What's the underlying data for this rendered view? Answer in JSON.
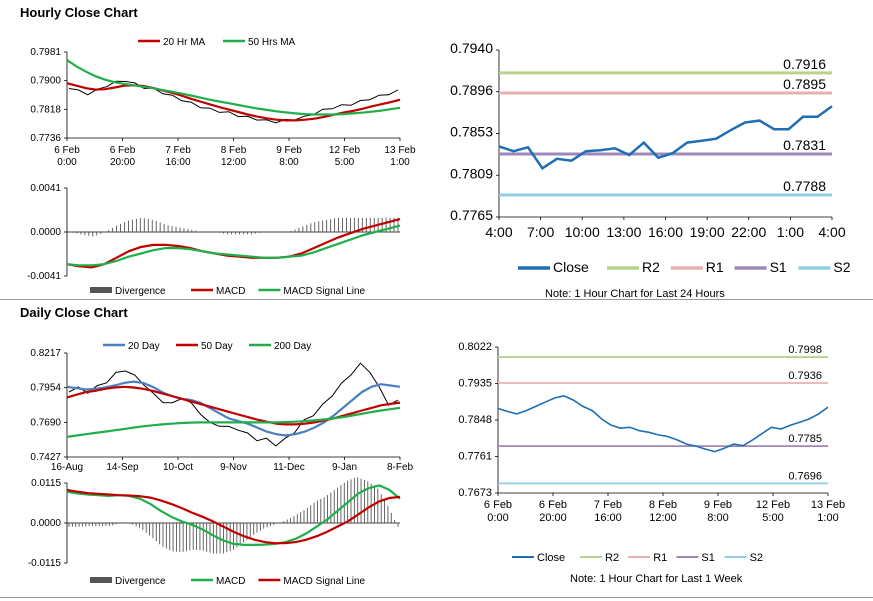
{
  "hourly": {
    "title": "Hourly Close Chart",
    "note": "Note: 1 Hour Chart for Last 24 Hours"
  },
  "daily": {
    "title": "Daily Close Chart",
    "note": "Note: 1 Hour Chart for Last 1 Week"
  },
  "chart_data": [
    {
      "id": "hourly_ma",
      "type": "line",
      "legend": [
        "20 Hr MA",
        "50 Hrs MA"
      ],
      "colors": {
        "price": "#000000",
        "ma20": "#c00000",
        "ma50": "#1fae4b"
      },
      "ylim": [
        0.7736,
        0.7981
      ],
      "yticks": [
        "0.7981",
        "0.7900",
        "0.7818",
        "0.7736"
      ],
      "xticks": [
        [
          "6 Feb",
          "0:00"
        ],
        [
          "6 Feb",
          "20:00"
        ],
        [
          "7 Feb",
          "16:00"
        ],
        [
          "8 Feb",
          "12:00"
        ],
        [
          "9 Feb",
          "8:00"
        ],
        [
          "12 Feb",
          "5:00"
        ],
        [
          "13 Feb",
          "1:00"
        ]
      ],
      "series": [
        {
          "name": "Close",
          "values": [
            0.788,
            0.787,
            0.7862,
            0.7872,
            0.7885,
            0.7895,
            0.79,
            0.789,
            0.788,
            0.7875,
            0.7865,
            0.7855,
            0.7845,
            0.7835,
            0.7825,
            0.7818,
            0.7812,
            0.7808,
            0.78,
            0.7795,
            0.779,
            0.7785,
            0.7782,
            0.7786,
            0.779,
            0.7795,
            0.7805,
            0.7815,
            0.7822,
            0.7828,
            0.7832,
            0.784,
            0.7848,
            0.7855,
            0.7862,
            0.787
          ]
        },
        {
          "name": "20 Hr MA",
          "values": [
            0.7892,
            0.7885,
            0.7878,
            0.7874,
            0.7875,
            0.788,
            0.7885,
            0.7886,
            0.7884,
            0.7879,
            0.7872,
            0.7865,
            0.7857,
            0.7848,
            0.784,
            0.7832,
            0.7824,
            0.7817,
            0.781,
            0.7803,
            0.7797,
            0.7792,
            0.7788,
            0.7786,
            0.7786,
            0.7788,
            0.7791,
            0.7796,
            0.7802,
            0.7808,
            0.7813,
            0.7819,
            0.7826,
            0.7832,
            0.7838,
            0.7845
          ]
        },
        {
          "name": "50 Hrs MA",
          "values": [
            0.7958,
            0.794,
            0.7925,
            0.7912,
            0.7902,
            0.7895,
            0.789,
            0.7886,
            0.7882,
            0.7878,
            0.7873,
            0.7868,
            0.7863,
            0.7857,
            0.7851,
            0.7845,
            0.784,
            0.7835,
            0.783,
            0.7825,
            0.782,
            0.7816,
            0.7812,
            0.7809,
            0.7806,
            0.7804,
            0.7803,
            0.7803,
            0.7803,
            0.7804,
            0.7806,
            0.7808,
            0.7811,
            0.7814,
            0.7818,
            0.7822
          ]
        }
      ]
    },
    {
      "id": "hourly_macd",
      "type": "line",
      "legend": [
        "Divergence",
        "MACD",
        "MACD Signal Line"
      ],
      "colors": {
        "div": "#555555",
        "macd": "#c00000",
        "signal": "#1fae4b"
      },
      "ylim": [
        -0.0041,
        0.0041
      ],
      "yticks": [
        "0.0041",
        "0.0000",
        "-0.0041"
      ],
      "series": [
        {
          "name": "MACD",
          "values": [
            -0.003,
            -0.0032,
            -0.0033,
            -0.003,
            -0.0024,
            -0.0018,
            -0.0014,
            -0.0012,
            -0.0012,
            -0.0013,
            -0.0015,
            -0.0018,
            -0.002,
            -0.0022,
            -0.0023,
            -0.0024,
            -0.0024,
            -0.0024,
            -0.0023,
            -0.002,
            -0.0015,
            -0.001,
            -0.0005,
            -0.0001,
            0.0003,
            0.0006,
            0.0009,
            0.0012
          ]
        },
        {
          "name": "MACD Signal Line",
          "values": [
            -0.003,
            -0.0031,
            -0.0031,
            -0.003,
            -0.0027,
            -0.0023,
            -0.002,
            -0.0017,
            -0.0015,
            -0.0015,
            -0.0016,
            -0.0018,
            -0.002,
            -0.0021,
            -0.0022,
            -0.0023,
            -0.0024,
            -0.0024,
            -0.0023,
            -0.0022,
            -0.0019,
            -0.0015,
            -0.0011,
            -0.0007,
            -0.0003,
            0.0,
            0.0003,
            0.0006
          ]
        }
      ]
    },
    {
      "id": "hourly_levels",
      "type": "line",
      "ylim": [
        0.7765,
        0.794
      ],
      "yticks": [
        "0.7940",
        "0.7896",
        "0.7853",
        "0.7809",
        "0.7765"
      ],
      "xticks": [
        "4:00",
        "7:00",
        "10:00",
        "13:00",
        "16:00",
        "19:00",
        "22:00",
        "1:00",
        "4:00"
      ],
      "legend": [
        "Close",
        "R2",
        "R1",
        "S1",
        "S2"
      ],
      "colors": {
        "close": "#1f6fb4",
        "r2": "#b9d38c",
        "r1": "#e8b0b0",
        "s1": "#9e88b8",
        "s2": "#8fcfe0"
      },
      "levels": {
        "R2": 0.7916,
        "R1": 0.7895,
        "S1": 0.7831,
        "S2": 0.7788
      },
      "level_labels": {
        "R2": "0.7916",
        "R1": "0.7895",
        "S1": "0.7831",
        "S2": "0.7788"
      },
      "close": [
        0.7839,
        0.7834,
        0.7838,
        0.7816,
        0.7826,
        0.7824,
        0.7834,
        0.7835,
        0.7837,
        0.783,
        0.7843,
        0.7827,
        0.7832,
        0.7843,
        0.7845,
        0.7847,
        0.7856,
        0.7864,
        0.7866,
        0.7857,
        0.7857,
        0.787,
        0.787,
        0.7881
      ]
    },
    {
      "id": "daily_ma",
      "type": "line",
      "legend": [
        "20 Day",
        "50 Day",
        "200 Day"
      ],
      "colors": {
        "price": "#000000",
        "ma20": "#4a7fc1",
        "ma50": "#c00000",
        "ma200": "#1fae4b"
      },
      "ylim": [
        0.7427,
        0.8217
      ],
      "yticks": [
        "0.8217",
        "0.7954",
        "0.7690",
        "0.7427"
      ],
      "xticks": [
        "16-Aug",
        "14-Sep",
        "10-Oct",
        "9-Nov",
        "11-Dec",
        "9-Jan",
        "8-Feb"
      ],
      "series": [
        {
          "name": "Close",
          "values": [
            0.793,
            0.795,
            0.792,
            0.796,
            0.8,
            0.806,
            0.809,
            0.804,
            0.798,
            0.79,
            0.785,
            0.783,
            0.788,
            0.783,
            0.776,
            0.768,
            0.767,
            0.765,
            0.764,
            0.76,
            0.756,
            0.756,
            0.752,
            0.756,
            0.762,
            0.77,
            0.775,
            0.782,
            0.79,
            0.798,
            0.806,
            0.813,
            0.808,
            0.795,
            0.783,
            0.785
          ]
        },
        {
          "name": "20 Day",
          "values": [
            0.796,
            0.795,
            0.794,
            0.7945,
            0.7955,
            0.797,
            0.799,
            0.8,
            0.799,
            0.796,
            0.792,
            0.789,
            0.787,
            0.786,
            0.784,
            0.78,
            0.776,
            0.772,
            0.77,
            0.768,
            0.765,
            0.762,
            0.76,
            0.759,
            0.76,
            0.762,
            0.765,
            0.769,
            0.774,
            0.78,
            0.786,
            0.792,
            0.796,
            0.798,
            0.797,
            0.796
          ]
        },
        {
          "name": "50 Day",
          "values": [
            0.788,
            0.79,
            0.792,
            0.793,
            0.7945,
            0.7955,
            0.796,
            0.7955,
            0.7945,
            0.793,
            0.791,
            0.789,
            0.787,
            0.785,
            0.783,
            0.781,
            0.779,
            0.777,
            0.775,
            0.773,
            0.771,
            0.7695,
            0.768,
            0.7675,
            0.7675,
            0.768,
            0.769,
            0.7705,
            0.772,
            0.774,
            0.776,
            0.778,
            0.78,
            0.782,
            0.783,
            0.784
          ]
        },
        {
          "name": "200 Day",
          "values": [
            0.758,
            0.759,
            0.76,
            0.761,
            0.762,
            0.763,
            0.764,
            0.765,
            0.766,
            0.7668,
            0.7675,
            0.768,
            0.7685,
            0.7688,
            0.769,
            0.769,
            0.769,
            0.769,
            0.769,
            0.769,
            0.769,
            0.769,
            0.769,
            0.7692,
            0.7695,
            0.77,
            0.7705,
            0.7712,
            0.772,
            0.773,
            0.7742,
            0.7755,
            0.7768,
            0.778,
            0.779,
            0.78
          ]
        }
      ]
    },
    {
      "id": "daily_macd",
      "type": "line",
      "legend": [
        "Divergence",
        "MACD",
        "MACD Signal Line"
      ],
      "colors": {
        "div": "#555555",
        "macd": "#1fae4b",
        "signal": "#c00000"
      },
      "ylim": [
        -0.0115,
        0.0115
      ],
      "yticks": [
        "0.0115",
        "0.0000",
        "-0.0115"
      ],
      "series": [
        {
          "name": "MACD",
          "values": [
            0.009,
            0.0085,
            0.0082,
            0.008,
            0.0078,
            0.008,
            0.0078,
            0.007,
            0.0055,
            0.0035,
            0.0018,
            0.0005,
            -0.0005,
            -0.0018,
            -0.0035,
            -0.005,
            -0.006,
            -0.0063,
            -0.0063,
            -0.0062,
            -0.006,
            -0.0055,
            -0.0045,
            -0.003,
            -0.001,
            0.001,
            0.0035,
            0.006,
            0.0085,
            0.01,
            0.0108,
            0.0095,
            0.007
          ]
        },
        {
          "name": "MACD Signal Line",
          "values": [
            0.0095,
            0.009,
            0.0086,
            0.0084,
            0.0082,
            0.008,
            0.0079,
            0.0077,
            0.0073,
            0.0065,
            0.0055,
            0.0043,
            0.003,
            0.0018,
            0.0005,
            -0.001,
            -0.0025,
            -0.0038,
            -0.0048,
            -0.0055,
            -0.0058,
            -0.0058,
            -0.0055,
            -0.0048,
            -0.0038,
            -0.0025,
            -0.001,
            0.0005,
            0.0025,
            0.0045,
            0.0062,
            0.0072,
            0.0075
          ]
        }
      ]
    },
    {
      "id": "daily_levels",
      "type": "line",
      "ylim": [
        0.7673,
        0.8022
      ],
      "yticks": [
        "0.8022",
        "0.7935",
        "0.7848",
        "0.7761",
        "0.7673"
      ],
      "xticks": [
        [
          "6 Feb",
          "0:00"
        ],
        [
          "6 Feb",
          "20:00"
        ],
        [
          "7 Feb",
          "16:00"
        ],
        [
          "8 Feb",
          "12:00"
        ],
        [
          "9 Feb",
          "8:00"
        ],
        [
          "12 Feb",
          "5:00"
        ],
        [
          "13 Feb",
          "1:00"
        ]
      ],
      "legend": [
        "Close",
        "R2",
        "R1",
        "S1",
        "S2"
      ],
      "colors": {
        "close": "#1f6fb4",
        "r2": "#b9d38c",
        "r1": "#e8b0b0",
        "s1": "#9e88b8",
        "s2": "#8fcfe0"
      },
      "levels": {
        "R2": 0.7998,
        "R1": 0.7936,
        "S1": 0.7785,
        "S2": 0.7696
      },
      "level_labels": {
        "R2": "0.7998",
        "R1": "0.7936",
        "S1": "0.7785",
        "S2": "0.7696"
      },
      "close": [
        0.7875,
        0.7868,
        0.7862,
        0.787,
        0.788,
        0.789,
        0.79,
        0.7905,
        0.7895,
        0.788,
        0.787,
        0.785,
        0.7835,
        0.7828,
        0.783,
        0.7822,
        0.7818,
        0.7812,
        0.7808,
        0.78,
        0.779,
        0.7785,
        0.7778,
        0.7772,
        0.778,
        0.779,
        0.7786,
        0.78,
        0.7815,
        0.783,
        0.7826,
        0.7835,
        0.7842,
        0.785,
        0.7862,
        0.7878
      ]
    }
  ]
}
